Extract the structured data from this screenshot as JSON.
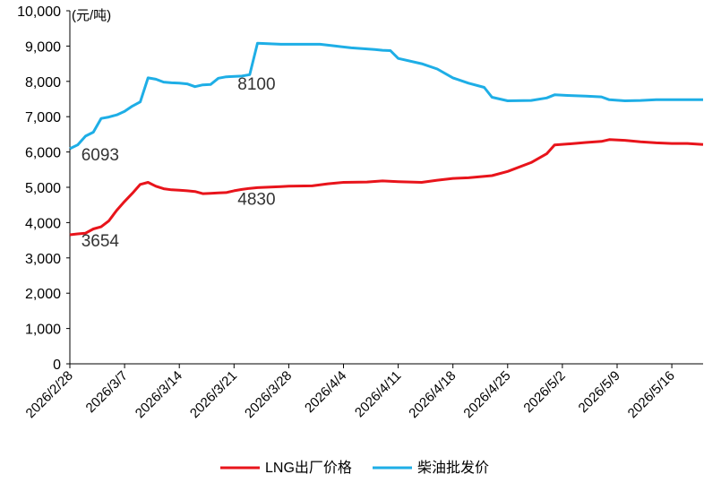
{
  "chart_data": {
    "type": "line",
    "unit_label": "(元/吨)",
    "ylim": [
      0,
      10000
    ],
    "y_ticks": [
      "0",
      "1,000",
      "2,000",
      "3,000",
      "4,000",
      "5,000",
      "6,000",
      "7,000",
      "8,000",
      "9,000",
      "10,000"
    ],
    "y_tick_values": [
      0,
      1000,
      2000,
      3000,
      4000,
      5000,
      6000,
      7000,
      8000,
      9000,
      10000
    ],
    "x_ticks": [
      "2026/2/28",
      "2026/3/7",
      "2026/3/14",
      "2026/3/21",
      "2026/3/28",
      "2026/4/4",
      "2026/4/11",
      "2026/4/18",
      "2026/4/25",
      "2026/5/2",
      "2026/5/9",
      "2026/5/16"
    ],
    "x_range": [
      "2026/2/28",
      "2026/5/20"
    ],
    "grid": false,
    "legend_position": "bottom",
    "series": [
      {
        "name": "LNG出厂价格",
        "color": "#e8141b",
        "points": [
          [
            "2026/2/28",
            3654
          ],
          [
            "2026/3/1",
            3680
          ],
          [
            "2026/3/2",
            3700
          ],
          [
            "2026/3/3",
            3820
          ],
          [
            "2026/3/4",
            3880
          ],
          [
            "2026/3/5",
            4050
          ],
          [
            "2026/3/6",
            4350
          ],
          [
            "2026/3/7",
            4600
          ],
          [
            "2026/3/8",
            4830
          ],
          [
            "2026/3/9",
            5080
          ],
          [
            "2026/3/10",
            5140
          ],
          [
            "2026/3/11",
            5030
          ],
          [
            "2026/3/12",
            4960
          ],
          [
            "2026/3/13",
            4930
          ],
          [
            "2026/3/14",
            4920
          ],
          [
            "2026/3/15",
            4900
          ],
          [
            "2026/3/16",
            4880
          ],
          [
            "2026/3/17",
            4820
          ],
          [
            "2026/3/18",
            4830
          ],
          [
            "2026/3/19",
            4840
          ],
          [
            "2026/3/20",
            4850
          ],
          [
            "2026/3/21",
            4900
          ],
          [
            "2026/3/22",
            4940
          ],
          [
            "2026/3/23",
            4970
          ],
          [
            "2026/3/24",
            4990
          ],
          [
            "2026/3/25",
            5000
          ],
          [
            "2026/3/26",
            5010
          ],
          [
            "2026/3/27",
            5020
          ],
          [
            "2026/3/28",
            5030
          ],
          [
            "2026/3/31",
            5040
          ],
          [
            "2026/4/2",
            5100
          ],
          [
            "2026/4/4",
            5140
          ],
          [
            "2026/4/7",
            5150
          ],
          [
            "2026/4/9",
            5180
          ],
          [
            "2026/4/11",
            5160
          ],
          [
            "2026/4/14",
            5140
          ],
          [
            "2026/4/16",
            5200
          ],
          [
            "2026/4/18",
            5250
          ],
          [
            "2026/4/20",
            5270
          ],
          [
            "2026/4/23",
            5330
          ],
          [
            "2026/4/25",
            5450
          ],
          [
            "2026/4/28",
            5700
          ],
          [
            "2026/4/30",
            5950
          ],
          [
            "2026/5/1",
            6200
          ],
          [
            "2026/5/3",
            6230
          ],
          [
            "2026/5/5",
            6270
          ],
          [
            "2026/5/7",
            6300
          ],
          [
            "2026/5/8",
            6350
          ],
          [
            "2026/5/10",
            6330
          ],
          [
            "2026/5/12",
            6290
          ],
          [
            "2026/5/14",
            6260
          ],
          [
            "2026/5/16",
            6240
          ],
          [
            "2026/5/18",
            6240
          ],
          [
            "2026/5/20",
            6210
          ]
        ]
      },
      {
        "name": "柴油批发价",
        "color": "#1eaee6",
        "points": [
          [
            "2026/2/28",
            6093
          ],
          [
            "2026/3/1",
            6200
          ],
          [
            "2026/3/2",
            6450
          ],
          [
            "2026/3/3",
            6560
          ],
          [
            "2026/3/4",
            6950
          ],
          [
            "2026/3/5",
            6990
          ],
          [
            "2026/3/6",
            7050
          ],
          [
            "2026/3/7",
            7150
          ],
          [
            "2026/3/8",
            7300
          ],
          [
            "2026/3/9",
            7420
          ],
          [
            "2026/3/10",
            8100
          ],
          [
            "2026/3/11",
            8060
          ],
          [
            "2026/3/12",
            7980
          ],
          [
            "2026/3/13",
            7960
          ],
          [
            "2026/3/14",
            7950
          ],
          [
            "2026/3/15",
            7930
          ],
          [
            "2026/3/16",
            7850
          ],
          [
            "2026/3/17",
            7900
          ],
          [
            "2026/3/18",
            7910
          ],
          [
            "2026/3/19",
            8090
          ],
          [
            "2026/3/20",
            8130
          ],
          [
            "2026/3/22",
            8150
          ],
          [
            "2026/3/23",
            8190
          ],
          [
            "2026/3/24",
            9080
          ],
          [
            "2026/3/25",
            9070
          ],
          [
            "2026/3/26",
            9060
          ],
          [
            "2026/3/27",
            9050
          ],
          [
            "2026/3/28",
            9050
          ],
          [
            "2026/4/1",
            9050
          ],
          [
            "2026/4/3",
            9000
          ],
          [
            "2026/4/5",
            8950
          ],
          [
            "2026/4/8",
            8900
          ],
          [
            "2026/4/9",
            8880
          ],
          [
            "2026/4/10",
            8870
          ],
          [
            "2026/4/11",
            8650
          ],
          [
            "2026/4/14",
            8500
          ],
          [
            "2026/4/16",
            8350
          ],
          [
            "2026/4/18",
            8100
          ],
          [
            "2026/4/20",
            7950
          ],
          [
            "2026/4/22",
            7830
          ],
          [
            "2026/4/23",
            7550
          ],
          [
            "2026/4/25",
            7450
          ],
          [
            "2026/4/28",
            7460
          ],
          [
            "2026/4/30",
            7530
          ],
          [
            "2026/5/1",
            7620
          ],
          [
            "2026/5/3",
            7600
          ],
          [
            "2026/5/5",
            7580
          ],
          [
            "2026/5/7",
            7560
          ],
          [
            "2026/5/8",
            7480
          ],
          [
            "2026/5/10",
            7450
          ],
          [
            "2026/5/12",
            7460
          ],
          [
            "2026/5/14",
            7480
          ],
          [
            "2026/5/16",
            7480
          ],
          [
            "2026/5/18",
            7480
          ],
          [
            "2026/5/20",
            7480
          ]
        ]
      }
    ],
    "annotations": [
      {
        "text": "6093",
        "x": "2026/3/1",
        "y": 6093
      },
      {
        "text": "3654",
        "x": "2026/3/1",
        "y": 3654
      },
      {
        "text": "8100",
        "x": "2026/3/21",
        "y": 8100
      },
      {
        "text": "4830",
        "x": "2026/3/21",
        "y": 4830
      }
    ]
  }
}
